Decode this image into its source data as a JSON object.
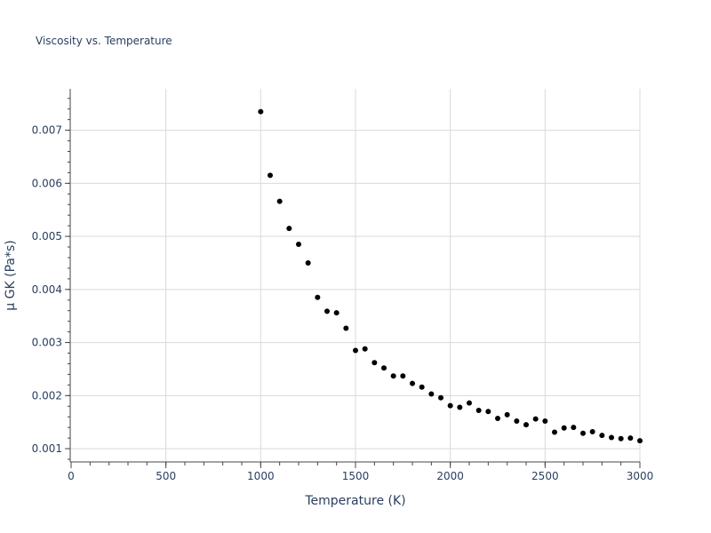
{
  "chart_data": {
    "type": "scatter",
    "title": "Viscosity vs. Temperature",
    "xlabel": "Temperature (K)",
    "ylabel": "μ GK (Pa*s)",
    "xlim": [
      0,
      3000
    ],
    "ylim": [
      0.00075,
      0.00778
    ],
    "x_ticks": [
      0,
      500,
      1000,
      1500,
      2000,
      2500,
      3000
    ],
    "x_tick_labels": [
      "0",
      "500",
      "1000",
      "1500",
      "2000",
      "2500",
      "3000"
    ],
    "y_ticks": [
      0.001,
      0.002,
      0.003,
      0.004,
      0.005,
      0.006,
      0.007
    ],
    "y_tick_labels": [
      "0.001",
      "0.002",
      "0.003",
      "0.004",
      "0.005",
      "0.006",
      "0.007"
    ],
    "grid": true,
    "marker_color": "#000000",
    "series": [
      {
        "x": [
          1000,
          1050,
          1100,
          1150,
          1200,
          1250,
          1300,
          1350,
          1400,
          1450,
          1500,
          1550,
          1600,
          1650,
          1700,
          1750,
          1800,
          1850,
          1900,
          1950,
          2000,
          2050,
          2100,
          2150,
          2200,
          2250,
          2300,
          2350,
          2400,
          2450,
          2500,
          2550,
          2600,
          2650,
          2700,
          2750,
          2800,
          2850,
          2900,
          2950,
          3000
        ],
        "y": [
          0.00735,
          0.00615,
          0.00566,
          0.00515,
          0.00485,
          0.0045,
          0.00385,
          0.00359,
          0.00356,
          0.00327,
          0.00285,
          0.00288,
          0.00262,
          0.00252,
          0.00237,
          0.00237,
          0.00223,
          0.00216,
          0.00203,
          0.00196,
          0.00181,
          0.00178,
          0.00186,
          0.00172,
          0.0017,
          0.00157,
          0.00164,
          0.00152,
          0.00145,
          0.00156,
          0.00152,
          0.00131,
          0.00139,
          0.0014,
          0.00129,
          0.00132,
          0.00125,
          0.00121,
          0.00119,
          0.0012,
          0.00115
        ]
      }
    ]
  }
}
